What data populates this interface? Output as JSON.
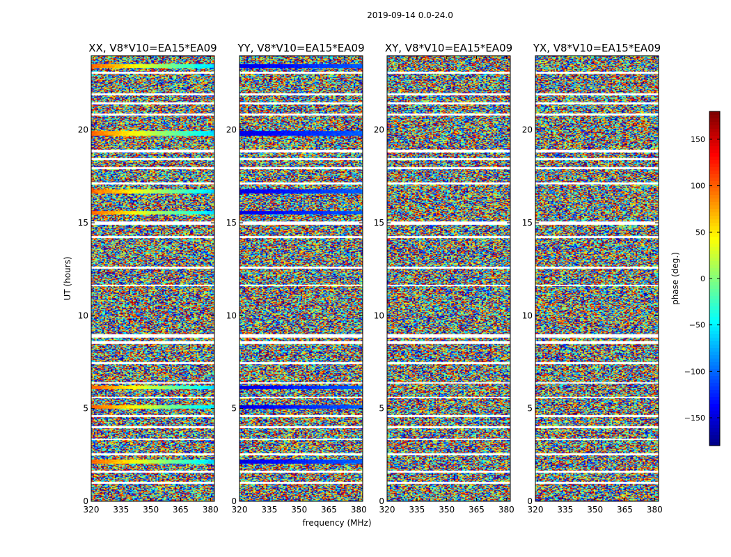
{
  "figure_title": "2019-09-14 0.0-24.0",
  "chart_data": {
    "type": "heatmap",
    "title": "2019-09-14 0.0-24.0",
    "xlabel": "frequency (MHz)",
    "ylabel": "UT (hours)",
    "xlim": [
      320,
      382
    ],
    "ylim": [
      0,
      24
    ],
    "xticks": [
      320,
      335,
      350,
      365,
      380
    ],
    "yticks": [
      0,
      5,
      10,
      15,
      20
    ],
    "panels": [
      {
        "title": "XX, V8*V10=EA15*EA09",
        "corr": "XX"
      },
      {
        "title": "YY, V8*V10=EA15*EA09",
        "corr": "YY"
      },
      {
        "title": "XY, V8*V10=EA15*EA09",
        "corr": "XY"
      },
      {
        "title": "YX, V8*V10=EA15*EA09",
        "corr": "YX"
      }
    ],
    "flagged_time_bands_hours": [
      [
        0.95,
        1.05
      ],
      [
        1.55,
        1.65
      ],
      [
        2.5,
        2.6
      ],
      [
        3.3,
        3.4
      ],
      [
        3.95,
        4.05
      ],
      [
        4.55,
        4.65
      ],
      [
        5.55,
        5.65
      ],
      [
        6.35,
        6.45
      ],
      [
        7.4,
        7.5
      ],
      [
        8.5,
        8.65
      ],
      [
        8.85,
        9.0
      ],
      [
        11.6,
        11.7
      ],
      [
        12.55,
        12.65
      ],
      [
        14.2,
        14.3
      ],
      [
        14.9,
        15.1
      ],
      [
        17.1,
        17.2
      ],
      [
        17.9,
        18.0
      ],
      [
        18.4,
        18.5
      ],
      [
        18.8,
        18.95
      ],
      [
        20.8,
        20.9
      ],
      [
        21.4,
        21.5
      ],
      [
        21.9,
        22.0
      ],
      [
        23.05,
        23.15
      ]
    ],
    "coherent_bands": [
      {
        "t": 2.15,
        "h": 0.25,
        "XX": "warm",
        "YY": "blue",
        "XY": "noise",
        "YX": "noise"
      },
      {
        "t": 5.1,
        "h": 0.2,
        "XX": "warm",
        "YY": "blue",
        "XY": "noise",
        "YX": "noise"
      },
      {
        "t": 6.15,
        "h": 0.2,
        "XX": "warm",
        "YY": "blue",
        "XY": "noise",
        "YX": "noise"
      },
      {
        "t": 15.55,
        "h": 0.2,
        "XX": "warm",
        "YY": "blue",
        "XY": "noise",
        "YX": "noise"
      },
      {
        "t": 16.7,
        "h": 0.2,
        "XX": "warm",
        "YY": "blue",
        "XY": "noise",
        "YX": "noise"
      },
      {
        "t": 19.85,
        "h": 0.25,
        "XX": "warm",
        "YY": "blue",
        "XY": "noise",
        "YX": "noise"
      },
      {
        "t": 23.45,
        "h": 0.2,
        "XX": "warm",
        "YY": "blue",
        "XY": "noise",
        "YX": "noise"
      }
    ],
    "colorbar": {
      "label": "phase (deg.)",
      "min": -180,
      "max": 180,
      "ticks": [
        150,
        100,
        50,
        0,
        -50,
        -100,
        -150
      ],
      "tick_labels": [
        "150",
        "100",
        "50",
        "0",
        "−50",
        "−100",
        "−150"
      ],
      "colormap": "jet"
    }
  }
}
